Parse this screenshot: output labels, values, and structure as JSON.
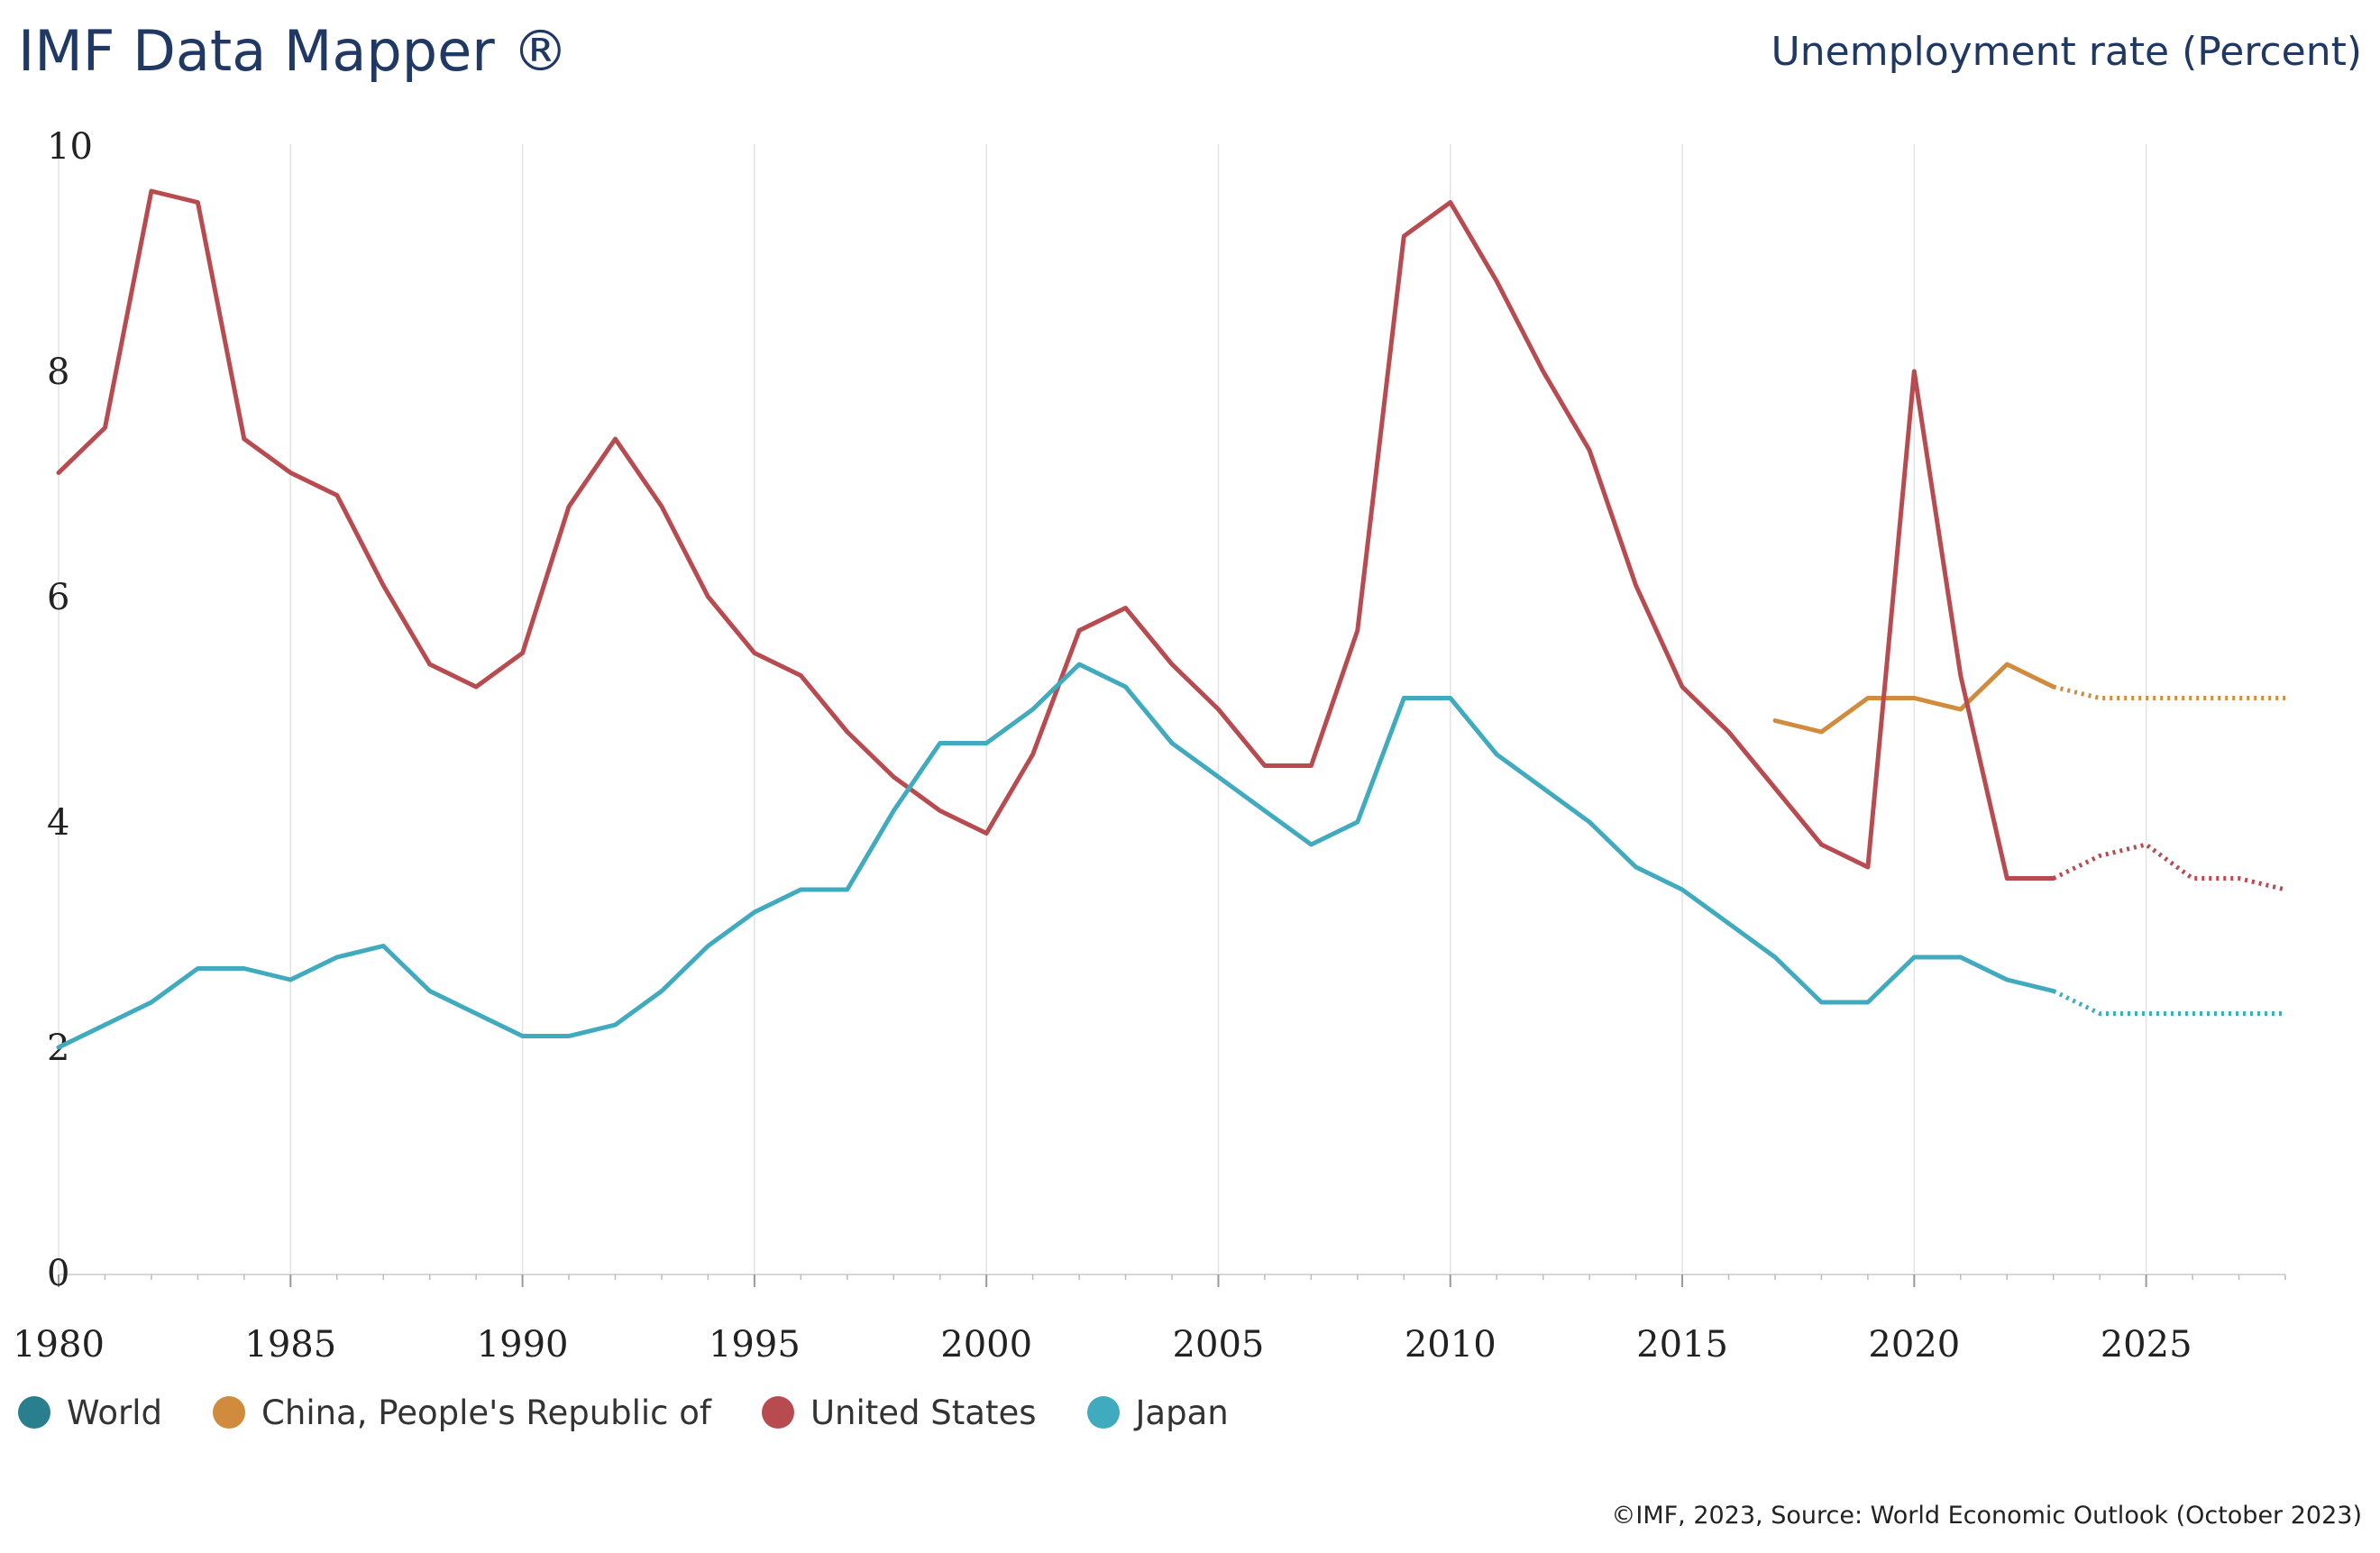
{
  "header": {
    "title": "IMF Data Mapper ®",
    "indicator": "Unemployment rate (Percent)"
  },
  "footer": {
    "source": "©IMF, 2023, Source: World Economic Outlook (October 2023)"
  },
  "legend": [
    {
      "label": "World",
      "color": "#2a7f8f"
    },
    {
      "label": "China, People's Republic of",
      "color": "#d08c3c"
    },
    {
      "label": "United States",
      "color": "#b84b50"
    },
    {
      "label": "Japan",
      "color": "#40aabf"
    }
  ],
  "chart_data": {
    "type": "line",
    "title": "Unemployment rate (Percent)",
    "xlabel": "",
    "ylabel": "",
    "xlim": [
      1980,
      2028
    ],
    "ylim": [
      0,
      10
    ],
    "x_ticks": [
      1980,
      1985,
      1990,
      1995,
      2000,
      2005,
      2010,
      2015,
      2020,
      2025
    ],
    "y_ticks": [
      0,
      2,
      4,
      6,
      8,
      10
    ],
    "grid": "vertical",
    "legend_position": "bottom-left",
    "projection_start_year": 2023,
    "series": [
      {
        "name": "World",
        "color": "#2a7f8f",
        "x": [],
        "values": []
      },
      {
        "name": "China, People's Republic of",
        "color": "#d08c3c",
        "x": [
          2017,
          2018,
          2019,
          2020,
          2021,
          2022,
          2023,
          2024,
          2025,
          2026,
          2027,
          2028
        ],
        "values": [
          4.9,
          4.8,
          5.1,
          5.1,
          5.0,
          5.4,
          5.2,
          5.1,
          5.1,
          5.1,
          5.1,
          5.1
        ]
      },
      {
        "name": "United States",
        "color": "#b84b50",
        "x": [
          1980,
          1981,
          1982,
          1983,
          1984,
          1985,
          1986,
          1987,
          1988,
          1989,
          1990,
          1991,
          1992,
          1993,
          1994,
          1995,
          1996,
          1997,
          1998,
          1999,
          2000,
          2001,
          2002,
          2003,
          2004,
          2005,
          2006,
          2007,
          2008,
          2009,
          2010,
          2011,
          2012,
          2013,
          2014,
          2015,
          2016,
          2017,
          2018,
          2019,
          2020,
          2021,
          2022,
          2023,
          2024,
          2025,
          2026,
          2027,
          2028
        ],
        "values": [
          7.1,
          7.5,
          9.6,
          9.5,
          7.4,
          7.1,
          6.9,
          6.1,
          5.4,
          5.2,
          5.5,
          6.8,
          7.4,
          6.8,
          6.0,
          5.5,
          5.3,
          4.8,
          4.4,
          4.1,
          3.9,
          4.6,
          5.7,
          5.9,
          5.4,
          5.0,
          4.5,
          4.5,
          5.7,
          9.2,
          9.5,
          8.8,
          8.0,
          7.3,
          6.1,
          5.2,
          4.8,
          4.3,
          3.8,
          3.6,
          8.0,
          5.3,
          3.5,
          3.5,
          3.7,
          3.8,
          3.5,
          3.5,
          3.4
        ]
      },
      {
        "name": "Japan",
        "color": "#40aabf",
        "x": [
          1980,
          1981,
          1982,
          1983,
          1984,
          1985,
          1986,
          1987,
          1988,
          1989,
          1990,
          1991,
          1992,
          1993,
          1994,
          1995,
          1996,
          1997,
          1998,
          1999,
          2000,
          2001,
          2002,
          2003,
          2004,
          2005,
          2006,
          2007,
          2008,
          2009,
          2010,
          2011,
          2012,
          2013,
          2014,
          2015,
          2016,
          2017,
          2018,
          2019,
          2020,
          2021,
          2022,
          2023,
          2024,
          2025,
          2026,
          2027,
          2028
        ],
        "values": [
          2.0,
          2.2,
          2.4,
          2.7,
          2.7,
          2.6,
          2.8,
          2.9,
          2.5,
          2.3,
          2.1,
          2.1,
          2.2,
          2.5,
          2.9,
          3.2,
          3.4,
          3.4,
          4.1,
          4.7,
          4.7,
          5.0,
          5.4,
          5.2,
          4.7,
          4.4,
          4.1,
          3.8,
          4.0,
          5.1,
          5.1,
          4.6,
          4.3,
          4.0,
          3.6,
          3.4,
          3.1,
          2.8,
          2.4,
          2.4,
          2.8,
          2.8,
          2.6,
          2.5,
          2.3,
          2.3,
          2.3,
          2.3,
          2.3
        ]
      }
    ]
  }
}
